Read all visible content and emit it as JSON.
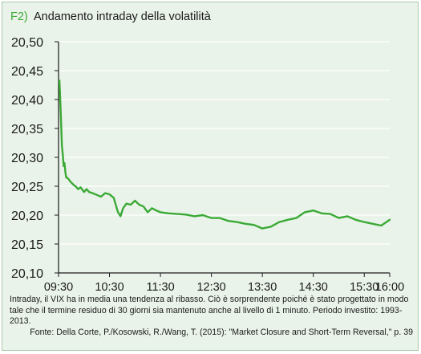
{
  "title_prefix": "F2)",
  "title": "Andamento intraday della volatilità",
  "note": "Intraday, il VIX ha in media una tendenza al ribasso. Ciò è sorprendente poiché è stato progettato in modo tale che il termine residuo di 30 giorni sia mantenuto anche al livello di 1 minuto. Periodo investito: 1993-2013.",
  "source": "Fonte: Della Corte, P./Kosowski, R./Wang, T. (2015): \"Market Closure and Short-Term Reversal,\" p. 39",
  "colors": {
    "line": "#3aaa35",
    "background": "#eaf3ea",
    "grid": "#ffffff",
    "accent": "#3aaa35"
  },
  "chart_data": {
    "type": "line",
    "title": "Andamento intraday della volatilità",
    "xlabel": "",
    "ylabel": "",
    "x_unit": "time",
    "x_range": [
      "09:30",
      "16:00"
    ],
    "ylim": [
      20.1,
      20.5
    ],
    "y_ticks": [
      "20,50",
      "20,45",
      "20,40",
      "20,35",
      "20,30",
      "20,25",
      "20,20",
      "20,15",
      "20,10"
    ],
    "x_ticks": [
      "09:30",
      "10:30",
      "11:30",
      "12:30",
      "13:30",
      "14:30",
      "15:30",
      "16:00"
    ],
    "grid": true,
    "series": [
      {
        "x": [
          "09:31",
          "09:32",
          "09:33",
          "09:34",
          "09:35",
          "09:36",
          "09:37",
          "09:38",
          "09:39",
          "09:40",
          "09:42",
          "09:44",
          "09:46",
          "09:48",
          "09:50",
          "09:53",
          "09:56",
          "10:00",
          "10:03",
          "10:06",
          "10:10",
          "10:15",
          "10:20",
          "10:25",
          "10:30",
          "10:35",
          "10:40",
          "10:43",
          "10:46",
          "10:50",
          "10:55",
          "11:00",
          "11:05",
          "11:10",
          "11:15",
          "11:20",
          "11:25",
          "11:30",
          "11:40",
          "11:50",
          "12:00",
          "12:10",
          "12:20",
          "12:30",
          "12:40",
          "12:50",
          "13:00",
          "13:10",
          "13:20",
          "13:30",
          "13:40",
          "13:50",
          "14:00",
          "14:10",
          "14:20",
          "14:30",
          "14:40",
          "14:50",
          "15:00",
          "15:10",
          "15:20",
          "15:30",
          "15:40",
          "15:50",
          "15:55",
          "16:00"
        ],
        "y": [
          20.433,
          20.4,
          20.36,
          20.32,
          20.305,
          20.285,
          20.29,
          20.275,
          20.265,
          20.265,
          20.262,
          20.258,
          20.255,
          20.252,
          20.25,
          20.245,
          20.248,
          20.24,
          20.245,
          20.24,
          20.238,
          20.235,
          20.232,
          20.238,
          20.236,
          20.23,
          20.205,
          20.198,
          20.212,
          20.22,
          20.218,
          20.225,
          20.218,
          20.215,
          20.205,
          20.212,
          20.208,
          20.205,
          20.203,
          20.202,
          20.201,
          20.198,
          20.2,
          20.195,
          20.195,
          20.19,
          20.188,
          20.185,
          20.183,
          20.177,
          20.18,
          20.188,
          20.192,
          20.195,
          20.205,
          20.208,
          20.203,
          20.202,
          20.195,
          20.198,
          20.192,
          20.188,
          20.185,
          20.182,
          20.187,
          20.192
        ]
      }
    ]
  }
}
